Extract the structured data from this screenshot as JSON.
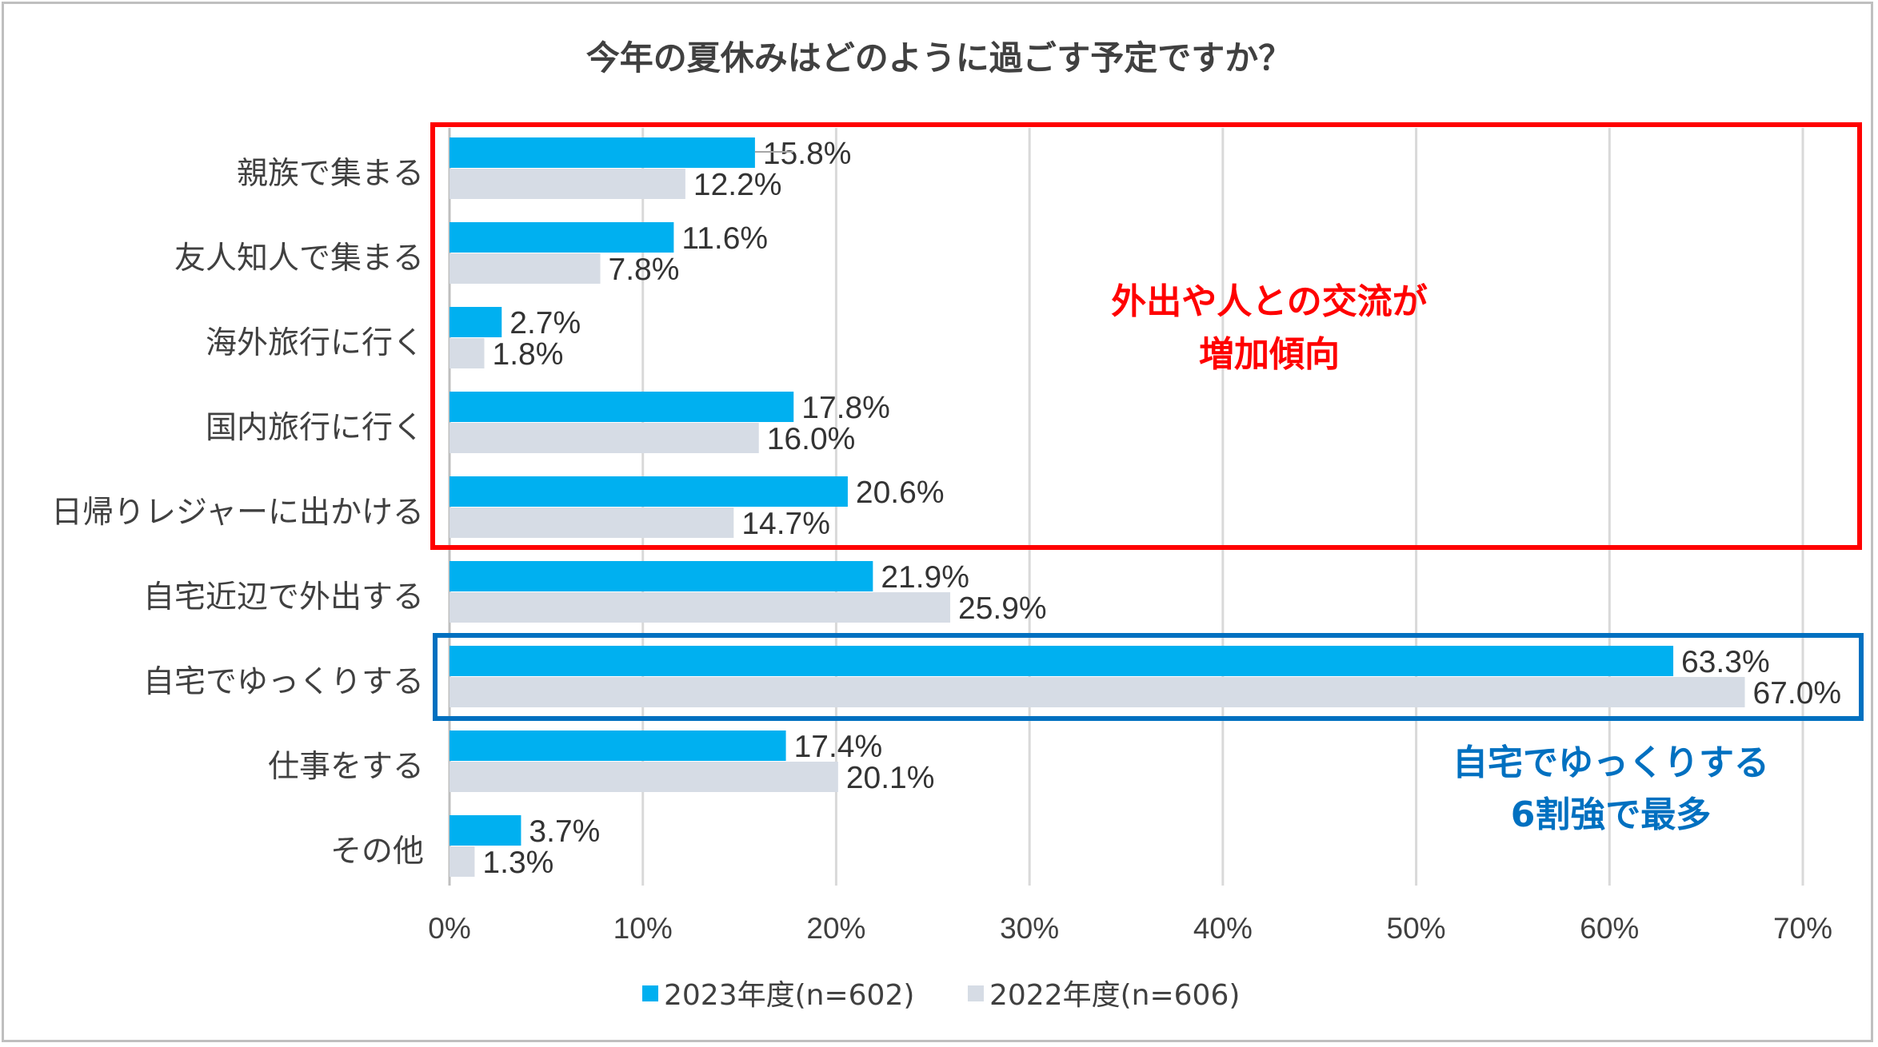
{
  "chart_data": {
    "type": "bar",
    "orientation": "horizontal",
    "title": "今年の夏休みはどのように過ごす予定ですか？",
    "categories": [
      "親族で集まる",
      "友人知人で集まる",
      "海外旅行に行く",
      "国内旅行に行く",
      "日帰りレジャーに出かける",
      "自宅近辺で外出する",
      "自宅でゆっくりする",
      "仕事をする",
      "その他"
    ],
    "series": [
      {
        "name": "2023年度(n=602)",
        "color": "#00b0f0",
        "values": [
          15.8,
          11.6,
          2.7,
          17.8,
          20.6,
          21.9,
          63.3,
          17.4,
          3.7
        ],
        "labels": [
          "15.8%",
          "11.6%",
          "2.7%",
          "17.8%",
          "20.6%",
          "21.9%",
          "63.3%",
          "17.4%",
          "3.7%"
        ]
      },
      {
        "name": "2022年度(n=606)",
        "color": "#d6dce5",
        "values": [
          12.2,
          7.8,
          1.8,
          16.0,
          14.7,
          25.9,
          67.0,
          20.1,
          1.3
        ],
        "labels": [
          "12.2%",
          "7.8%",
          "1.8%",
          "16.0%",
          "14.7%",
          "25.9%",
          "67.0%",
          "20.1%",
          "1.3%"
        ]
      }
    ],
    "xlim": [
      0,
      70
    ],
    "xticks": [
      "0%",
      "10%",
      "20%",
      "30%",
      "40%",
      "50%",
      "60%",
      "70%"
    ],
    "grid": true,
    "legend_position": "bottom",
    "annotations": [
      {
        "lines": [
          "外出や人との交流が",
          "増加傾向"
        ],
        "color": "#ff0000",
        "box_color": "#ff0000",
        "covers_categories": [
          "親族で集まる",
          "友人知人で集まる",
          "海外旅行に行く",
          "国内旅行に行く",
          "日帰りレジャーに出かける"
        ]
      },
      {
        "lines": [
          "自宅でゆっくりする",
          "6割強で最多"
        ],
        "color": "#0070c0",
        "box_color": "#0070c0",
        "covers_categories": [
          "自宅でゆっくりする"
        ]
      }
    ]
  }
}
